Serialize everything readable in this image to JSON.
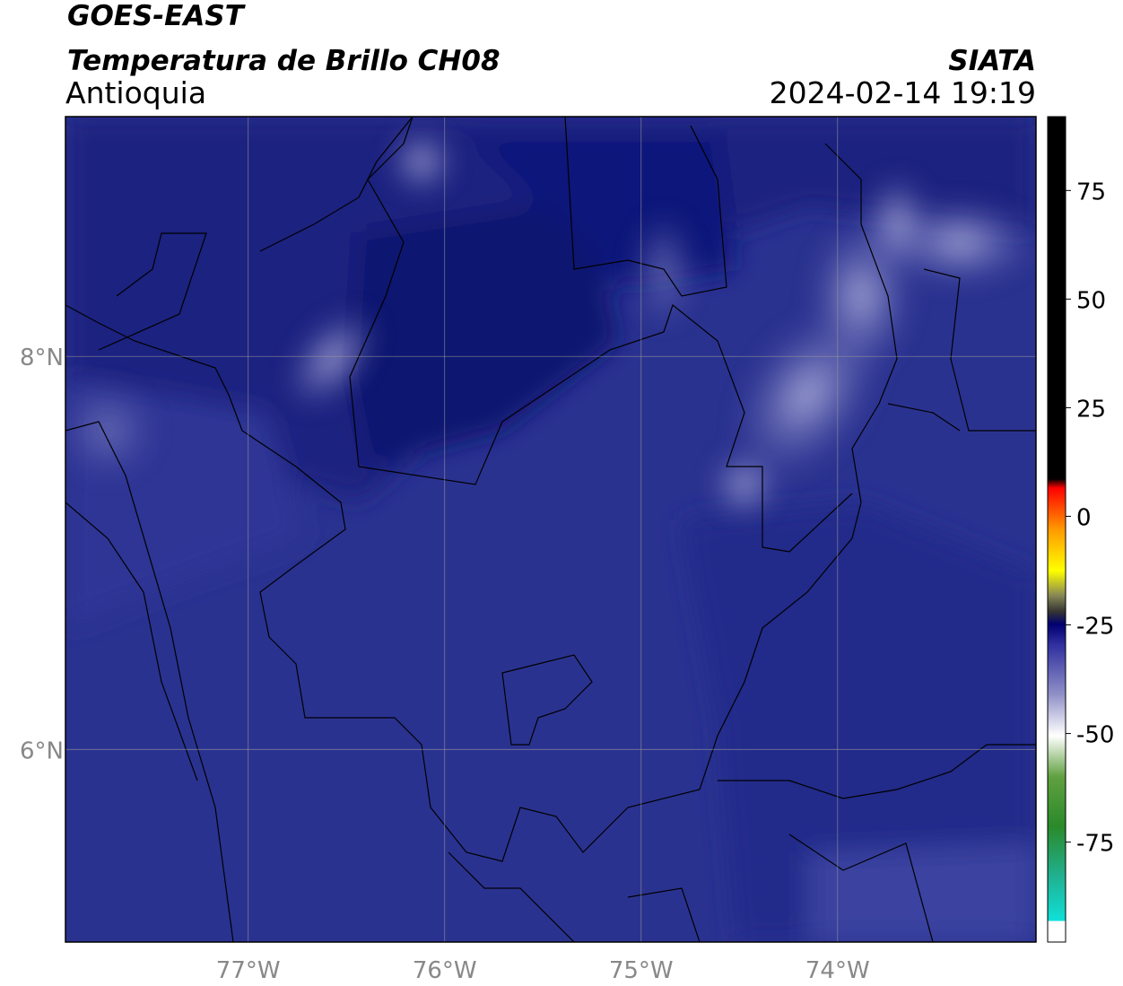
{
  "header": {
    "title": "GOES-EAST",
    "subtitle": "Temperatura de Brillo CH08",
    "region": "Antioquia",
    "source": "SIATA",
    "timestamp": "2024-02-14 19:19"
  },
  "map": {
    "xlim": [
      -77.93,
      -72.99
    ],
    "ylim": [
      5.02,
      9.22
    ],
    "xticks": [
      {
        "value": -77,
        "label": "77°W"
      },
      {
        "value": -76,
        "label": "76°W"
      },
      {
        "value": -75,
        "label": "75°W"
      },
      {
        "value": -74,
        "label": "74°W"
      }
    ],
    "yticks": [
      {
        "value": 8,
        "label": "8°N"
      },
      {
        "value": 6,
        "label": "6°N"
      }
    ]
  },
  "colorbar": {
    "lim": [
      -98,
      92
    ],
    "ticks": [
      75,
      50,
      25,
      0,
      -25,
      -50,
      -75
    ]
  }
}
